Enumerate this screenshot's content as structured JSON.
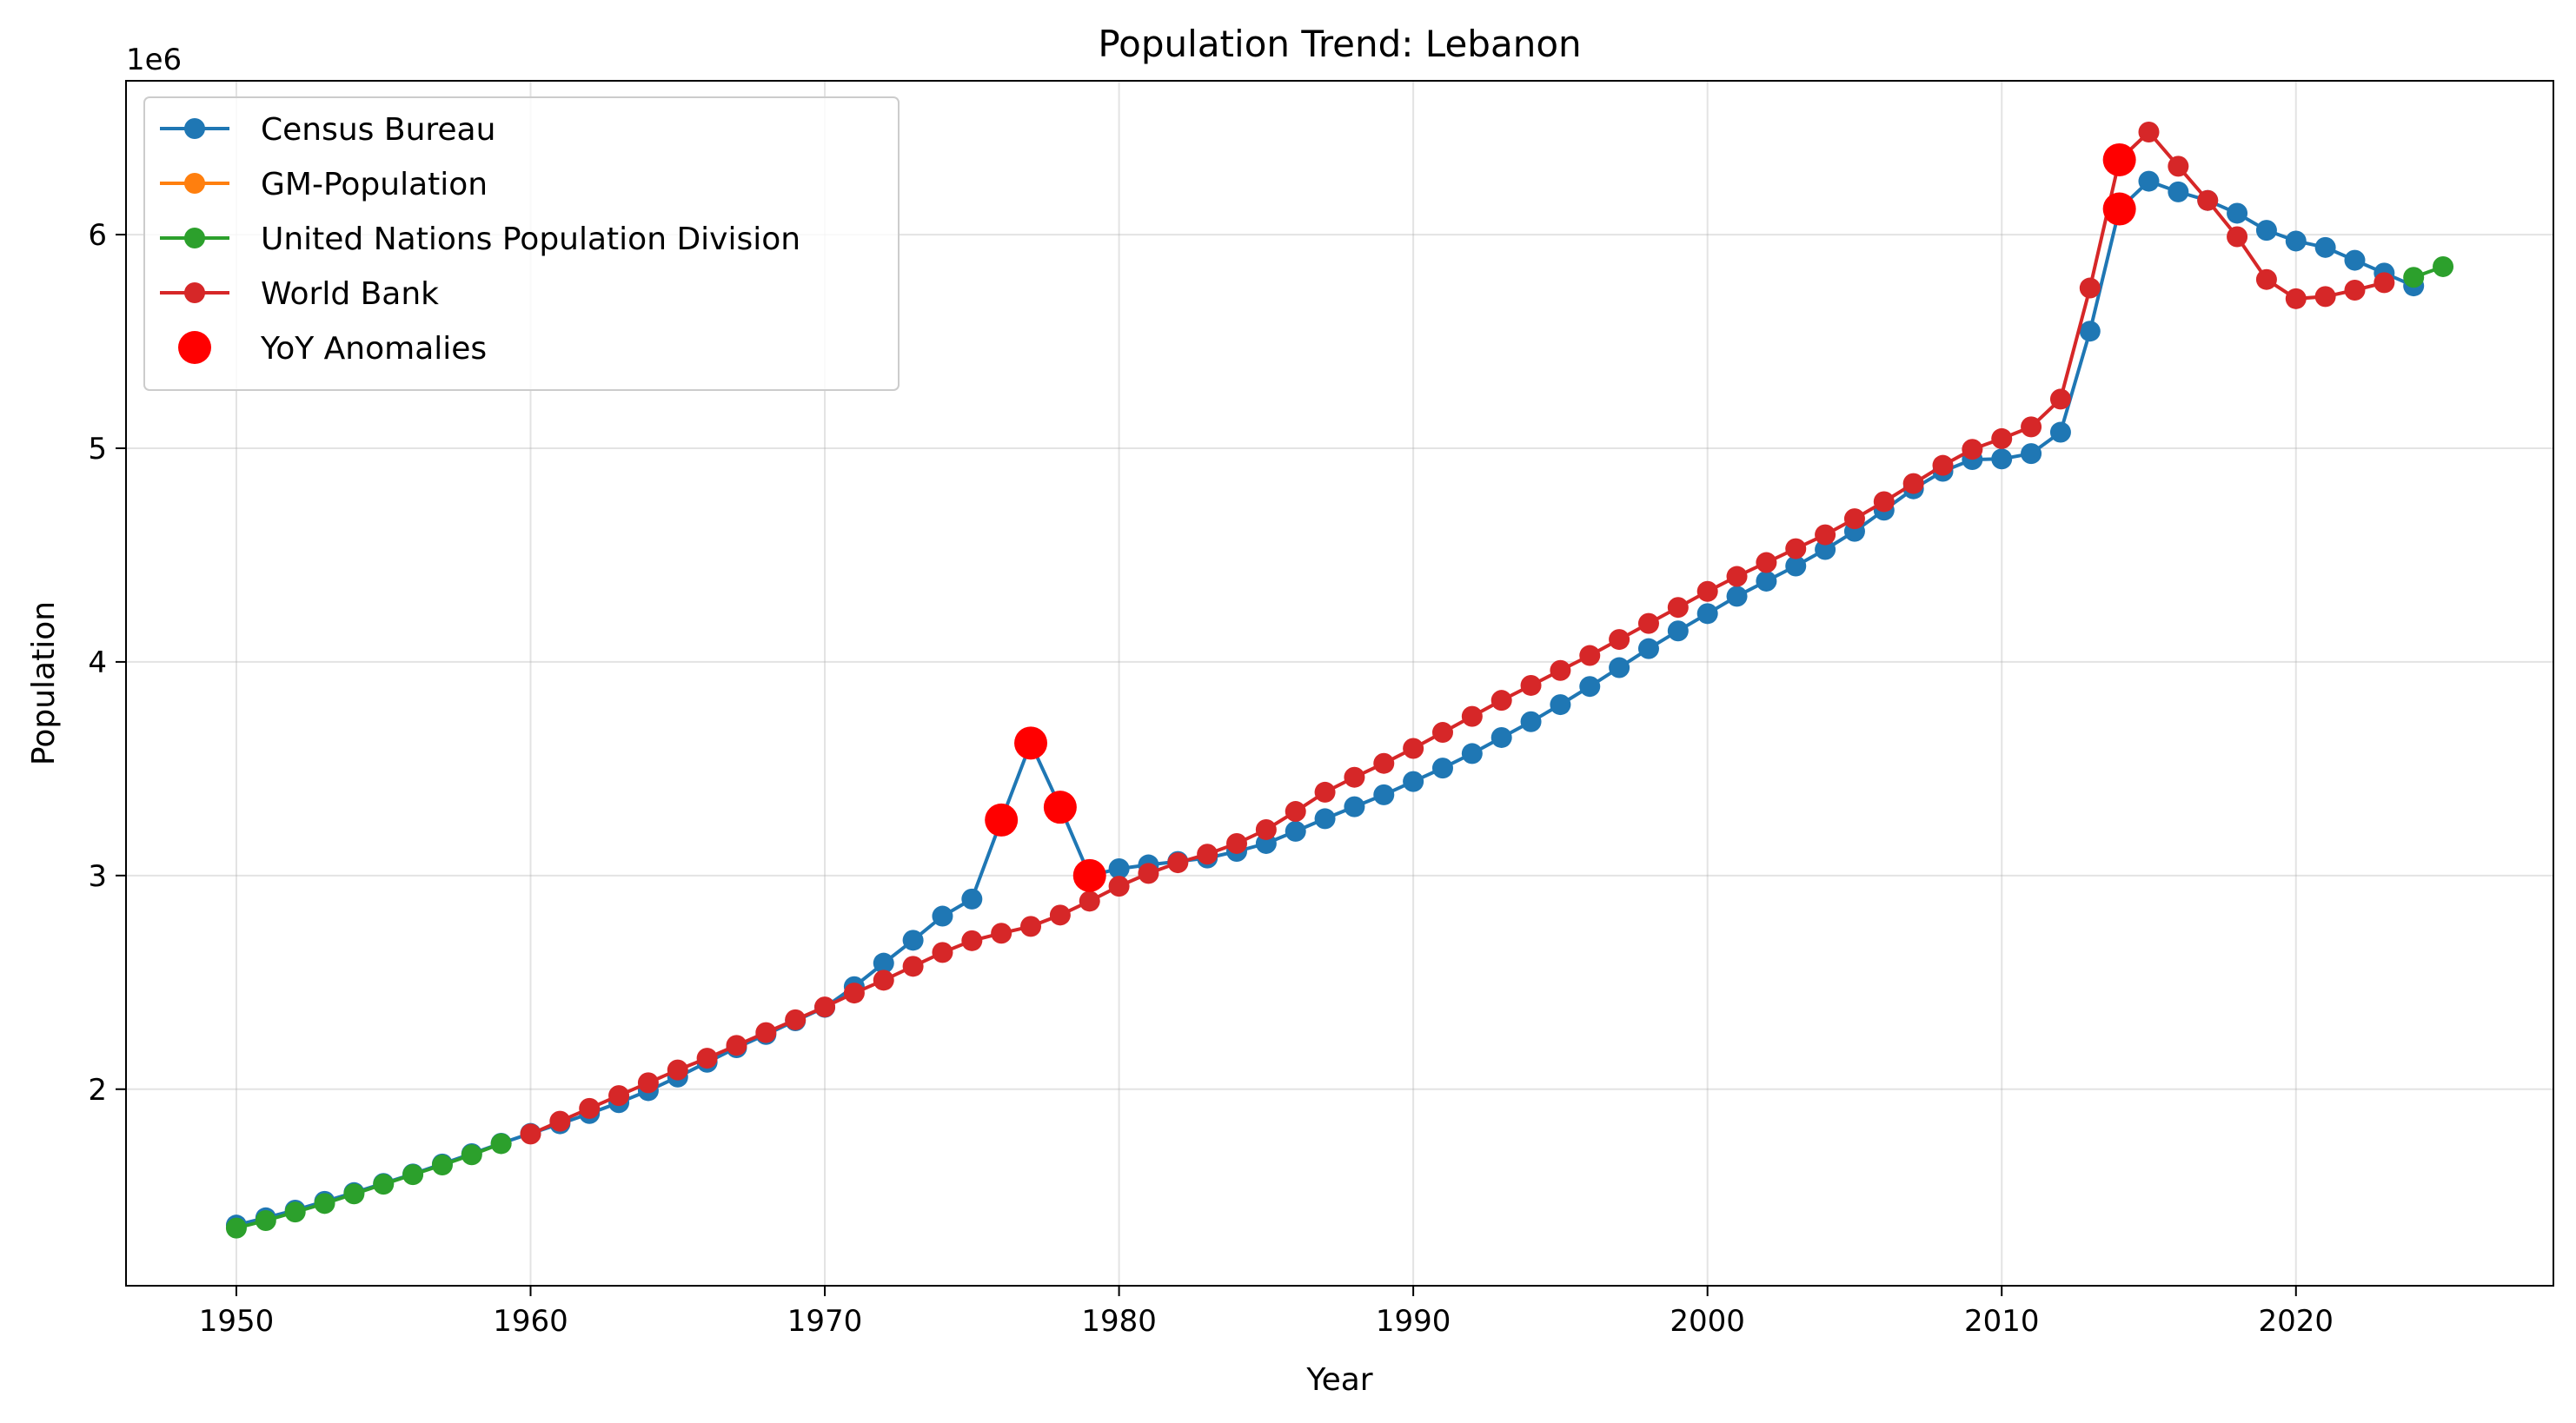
{
  "chart_data": {
    "type": "line",
    "title": "Population Trend: Lebanon",
    "xlabel": "Year",
    "ylabel": "Population",
    "y_offset_label": "1e6",
    "xlim": [
      1946.25,
      2028.75
    ],
    "ylim": [
      1080000,
      6720000
    ],
    "x_ticks": [
      1950,
      1960,
      1970,
      1980,
      1990,
      2000,
      2010,
      2020
    ],
    "y_ticks": [
      2000000,
      3000000,
      4000000,
      5000000,
      6000000
    ],
    "y_tick_labels": [
      "2",
      "3",
      "4",
      "5",
      "6"
    ],
    "grid": true,
    "legend_position": "upper-left",
    "legend": [
      "Census Bureau",
      "GM-Population",
      "United Nations Population Division",
      "World Bank",
      "YoY Anomalies"
    ],
    "series": [
      {
        "name": "Census Bureau",
        "color": "#1f77b4",
        "x": [
          1950,
          1951,
          1952,
          1953,
          1954,
          1955,
          1956,
          1957,
          1958,
          1959,
          1960,
          1961,
          1962,
          1963,
          1964,
          1965,
          1966,
          1967,
          1968,
          1969,
          1970,
          1971,
          1972,
          1973,
          1974,
          1975,
          1976,
          1977,
          1978,
          1979,
          1980,
          1981,
          1982,
          1983,
          1984,
          1985,
          1986,
          1987,
          1988,
          1989,
          1990,
          1991,
          1992,
          1993,
          1994,
          1995,
          1996,
          1997,
          1998,
          1999,
          2000,
          2001,
          2002,
          2003,
          2004,
          2005,
          2006,
          2007,
          2008,
          2009,
          2010,
          2011,
          2012,
          2013,
          2014,
          2015,
          2016,
          2017,
          2018,
          2019,
          2020,
          2021,
          2022,
          2023,
          2024
        ],
        "y": [
          1364000,
          1398000,
          1434000,
          1475000,
          1516000,
          1559000,
          1603000,
          1650000,
          1698000,
          1747000,
          1793000,
          1838000,
          1886000,
          1937000,
          1993000,
          2057000,
          2126000,
          2194000,
          2256000,
          2320000,
          2383000,
          2480000,
          2590000,
          2697000,
          2810000,
          2890000,
          3260000,
          3620000,
          3320000,
          3000000,
          3032000,
          3050000,
          3066000,
          3082000,
          3113000,
          3150000,
          3207000,
          3266000,
          3322000,
          3378000,
          3440000,
          3503000,
          3571000,
          3646000,
          3720000,
          3800000,
          3885000,
          3973000,
          4062000,
          4145000,
          4226000,
          4307000,
          4378000,
          4449000,
          4526000,
          4611000,
          4710000,
          4810000,
          4892000,
          4947000,
          4950000,
          4975000,
          5075000,
          5548000,
          6120000,
          6250000,
          6200000,
          6160000,
          6100000,
          6020000,
          5970000,
          5940000,
          5880000,
          5820000,
          5760000
        ]
      },
      {
        "name": "GM-Population",
        "color": "#ff7f0e",
        "x": [],
        "y": []
      },
      {
        "name": "United Nations Population Division",
        "color": "#2ca02c",
        "x": [
          1950,
          1951,
          1952,
          1953,
          1954,
          1955,
          1956,
          1957,
          1958,
          1959,
          2024,
          2025
        ],
        "y": [
          1350000,
          1385000,
          1425000,
          1465000,
          1510000,
          1555000,
          1600000,
          1645000,
          1693000,
          1745000,
          5800000,
          5850000
        ]
      },
      {
        "name": "World Bank",
        "color": "#d62728",
        "x": [
          1960,
          1961,
          1962,
          1963,
          1964,
          1965,
          1966,
          1967,
          1968,
          1969,
          1970,
          1971,
          1972,
          1973,
          1974,
          1975,
          1976,
          1977,
          1978,
          1979,
          1980,
          1981,
          1982,
          1983,
          1984,
          1985,
          1986,
          1987,
          1988,
          1989,
          1990,
          1991,
          1992,
          1993,
          1994,
          1995,
          1996,
          1997,
          1998,
          1999,
          2000,
          2001,
          2002,
          2003,
          2004,
          2005,
          2006,
          2007,
          2008,
          2009,
          2010,
          2011,
          2012,
          2013,
          2014,
          2015,
          2016,
          2017,
          2018,
          2019,
          2020,
          2021,
          2022,
          2023
        ],
        "y": [
          1790000,
          1850000,
          1910000,
          1970000,
          2030000,
          2090000,
          2145000,
          2205000,
          2265000,
          2325000,
          2385000,
          2450000,
          2510000,
          2575000,
          2640000,
          2695000,
          2730000,
          2762000,
          2815000,
          2880000,
          2950000,
          3010000,
          3060000,
          3100000,
          3150000,
          3215000,
          3300000,
          3390000,
          3460000,
          3525000,
          3595000,
          3670000,
          3745000,
          3820000,
          3890000,
          3960000,
          4030000,
          4105000,
          4180000,
          4255000,
          4330000,
          4400000,
          4465000,
          4530000,
          4595000,
          4670000,
          4750000,
          4835000,
          4920000,
          4995000,
          5045000,
          5100000,
          5230000,
          5750000,
          6350000,
          6480000,
          6320000,
          6160000,
          5990000,
          5790000,
          5700000,
          5710000,
          5740000,
          5775000
        ]
      },
      {
        "name": "YoY Anomalies",
        "color": "#ff0000",
        "type": "scatter",
        "x": [
          1976,
          1977,
          1978,
          1979,
          2014,
          2014
        ],
        "y": [
          3260000,
          3620000,
          3320000,
          3000000,
          6350000,
          6120000
        ]
      }
    ]
  }
}
